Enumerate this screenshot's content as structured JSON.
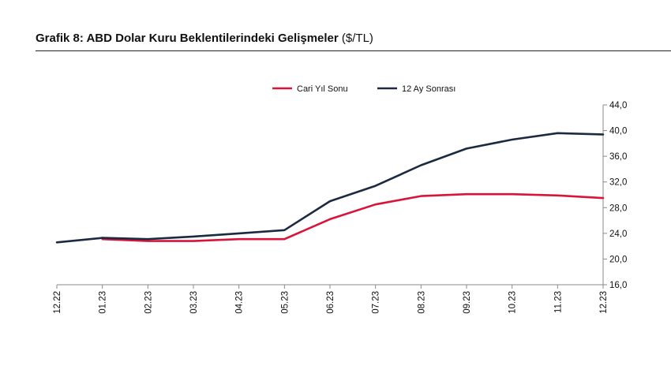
{
  "title": {
    "main": "Grafik 8: ABD Dolar Kuru Beklentilerindeki Gelişmeler",
    "unit": "($/TL)"
  },
  "chart_data": {
    "type": "line",
    "categories": [
      "12.22",
      "01.23",
      "02.23",
      "03.23",
      "04.23",
      "05.23",
      "06.23",
      "07.23",
      "08.23",
      "09.23",
      "10.23",
      "11.23",
      "12.23"
    ],
    "series": [
      {
        "name": "Cari Yıl Sonu",
        "color": "#d9143a",
        "values": [
          null,
          23.1,
          22.8,
          22.8,
          23.1,
          23.1,
          26.2,
          28.5,
          29.8,
          30.1,
          30.1,
          29.9,
          29.5
        ]
      },
      {
        "name": "12 Ay Sonrası",
        "color": "#1b2a41",
        "values": [
          22.6,
          23.3,
          23.1,
          23.5,
          24.0,
          24.5,
          29.0,
          31.4,
          34.6,
          37.2,
          38.6,
          39.6,
          39.4
        ]
      }
    ],
    "yticks": [
      "16,0",
      "20,0",
      "24,0",
      "28,0",
      "32,0",
      "36,0",
      "40,0",
      "44,0"
    ],
    "ylim": [
      16,
      44
    ],
    "y_axis_side": "right",
    "legend_position": "top-center",
    "grid": false
  }
}
